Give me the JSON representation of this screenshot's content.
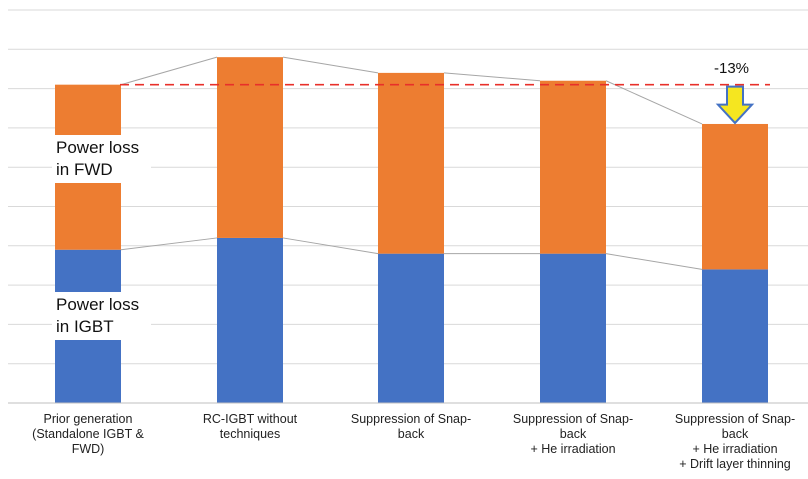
{
  "chart_data": {
    "type": "bar",
    "stacked": true,
    "categories": [
      [
        "Prior generation",
        "(Standalone IGBT &",
        "FWD)"
      ],
      [
        "RC-IGBT without",
        "techniques"
      ],
      [
        "Suppression of Snap-",
        "back"
      ],
      [
        "Suppression of Snap-",
        "back",
        "+ He irradiation"
      ],
      [
        "Suppression of Snap-",
        "back",
        "+ He irradiation",
        "+ Drift layer thinning"
      ]
    ],
    "series": [
      {
        "name": "Power loss in IGBT",
        "label_lines": [
          "Power loss",
          "in IGBT"
        ],
        "values": [
          3.9,
          4.2,
          3.8,
          3.8,
          3.4
        ]
      },
      {
        "name": "Power loss in FWD",
        "label_lines": [
          "Power loss",
          "in FWD"
        ],
        "values": [
          4.2,
          4.6,
          4.6,
          4.4,
          3.7
        ]
      }
    ],
    "ylim": [
      0,
      10
    ],
    "grid": true,
    "reference_line": {
      "value": 8.1,
      "style": "dashed",
      "color": "#e8302a"
    },
    "annotation": {
      "text": "-13%",
      "category_index": 4
    },
    "colors": {
      "igbt": "#4472c4",
      "fwd": "#ed7d31",
      "arrow_fill": "#f5e620",
      "arrow_stroke": "#4472c4",
      "grid": "#d9d9d9",
      "connector": "#a6a6a6"
    }
  }
}
